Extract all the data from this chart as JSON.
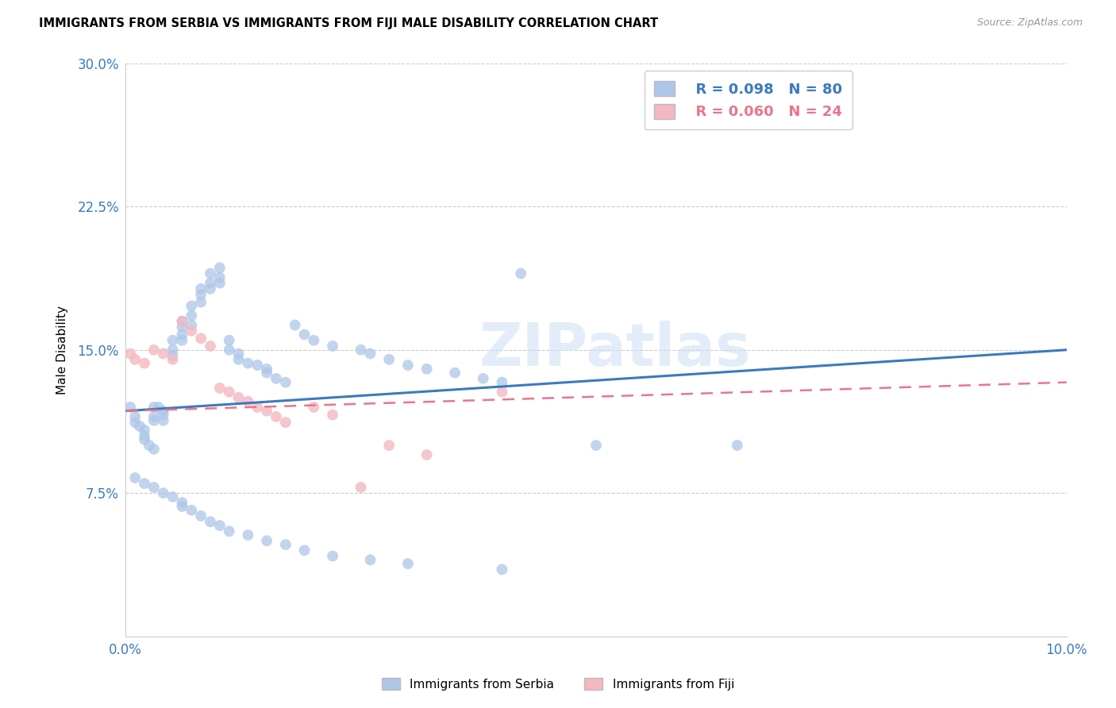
{
  "title": "IMMIGRANTS FROM SERBIA VS IMMIGRANTS FROM FIJI MALE DISABILITY CORRELATION CHART",
  "source": "Source: ZipAtlas.com",
  "ylabel_label": "Male Disability",
  "x_label_bottom": "Immigrants from Serbia",
  "x_label_bottom2": "Immigrants from Fiji",
  "xlim": [
    0.0,
    0.1
  ],
  "ylim": [
    0.0,
    0.3
  ],
  "serbia_color": "#aec6e8",
  "fiji_color": "#f4b8c1",
  "serbia_line_color": "#3a7abf",
  "fiji_line_color": "#e8768a",
  "serbia_R": 0.098,
  "serbia_N": 80,
  "fiji_R": 0.06,
  "fiji_N": 24,
  "serbia_line_x0": 0.0,
  "serbia_line_y0": 0.118,
  "serbia_line_x1": 0.1,
  "serbia_line_y1": 0.15,
  "fiji_line_x0": 0.0,
  "fiji_line_y0": 0.118,
  "fiji_line_x1": 0.1,
  "fiji_line_y1": 0.133,
  "serbia_x": [
    0.0005,
    0.001,
    0.001,
    0.0015,
    0.002,
    0.002,
    0.002,
    0.0025,
    0.003,
    0.003,
    0.003,
    0.003,
    0.0035,
    0.004,
    0.004,
    0.004,
    0.005,
    0.005,
    0.005,
    0.006,
    0.006,
    0.006,
    0.006,
    0.007,
    0.007,
    0.007,
    0.008,
    0.008,
    0.008,
    0.009,
    0.009,
    0.009,
    0.01,
    0.01,
    0.01,
    0.011,
    0.011,
    0.012,
    0.012,
    0.013,
    0.014,
    0.015,
    0.015,
    0.016,
    0.017,
    0.018,
    0.019,
    0.02,
    0.022,
    0.025,
    0.026,
    0.028,
    0.03,
    0.032,
    0.035,
    0.038,
    0.04,
    0.042,
    0.05,
    0.065,
    0.001,
    0.002,
    0.003,
    0.004,
    0.005,
    0.006,
    0.006,
    0.007,
    0.008,
    0.009,
    0.01,
    0.011,
    0.013,
    0.015,
    0.017,
    0.019,
    0.022,
    0.026,
    0.03,
    0.04
  ],
  "serbia_y": [
    0.12,
    0.115,
    0.112,
    0.11,
    0.108,
    0.105,
    0.103,
    0.1,
    0.098,
    0.12,
    0.115,
    0.113,
    0.12,
    0.118,
    0.116,
    0.113,
    0.155,
    0.15,
    0.147,
    0.165,
    0.162,
    0.158,
    0.155,
    0.173,
    0.168,
    0.163,
    0.182,
    0.179,
    0.175,
    0.19,
    0.185,
    0.182,
    0.193,
    0.188,
    0.185,
    0.155,
    0.15,
    0.148,
    0.145,
    0.143,
    0.142,
    0.14,
    0.138,
    0.135,
    0.133,
    0.163,
    0.158,
    0.155,
    0.152,
    0.15,
    0.148,
    0.145,
    0.142,
    0.14,
    0.138,
    0.135,
    0.133,
    0.19,
    0.1,
    0.1,
    0.083,
    0.08,
    0.078,
    0.075,
    0.073,
    0.07,
    0.068,
    0.066,
    0.063,
    0.06,
    0.058,
    0.055,
    0.053,
    0.05,
    0.048,
    0.045,
    0.042,
    0.04,
    0.038,
    0.035
  ],
  "fiji_x": [
    0.0005,
    0.001,
    0.002,
    0.003,
    0.004,
    0.005,
    0.006,
    0.007,
    0.008,
    0.009,
    0.01,
    0.011,
    0.012,
    0.013,
    0.014,
    0.015,
    0.016,
    0.017,
    0.02,
    0.022,
    0.025,
    0.028,
    0.032,
    0.04
  ],
  "fiji_y": [
    0.148,
    0.145,
    0.143,
    0.15,
    0.148,
    0.145,
    0.165,
    0.16,
    0.156,
    0.152,
    0.13,
    0.128,
    0.125,
    0.123,
    0.12,
    0.118,
    0.115,
    0.112,
    0.12,
    0.116,
    0.078,
    0.1,
    0.095,
    0.128
  ]
}
